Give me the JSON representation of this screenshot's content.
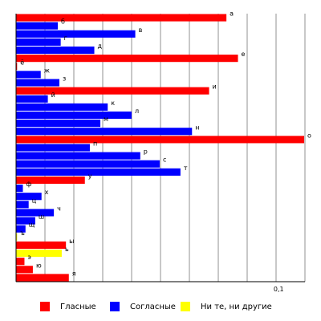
{
  "chart_data": {
    "type": "bar",
    "orientation": "horizontal",
    "xlim": [
      0,
      0.11
    ],
    "x_ticks": [
      {
        "value": 0.1,
        "label": "0,1"
      }
    ],
    "grid": true,
    "categories": [
      "а",
      "б",
      "в",
      "г",
      "д",
      "е",
      "ё",
      "ж",
      "з",
      "и",
      "й",
      "к",
      "л",
      "м",
      "н",
      "о",
      "п",
      "р",
      "с",
      "т",
      "у",
      "ф",
      "х",
      "ц",
      "ч",
      "ш",
      "щ",
      "ъ",
      "ы",
      "ь",
      "э",
      "ю",
      "я"
    ],
    "values": [
      0.0801,
      0.0159,
      0.0454,
      0.017,
      0.0298,
      0.0845,
      0.0004,
      0.0094,
      0.0165,
      0.0735,
      0.0121,
      0.0349,
      0.044,
      0.0321,
      0.067,
      0.1097,
      0.0281,
      0.0473,
      0.0547,
      0.0626,
      0.0262,
      0.0026,
      0.0097,
      0.0048,
      0.0144,
      0.0073,
      0.0036,
      0.0004,
      0.019,
      0.0174,
      0.0032,
      0.0064,
      0.0201
    ],
    "groups": [
      "vowel",
      "consonant",
      "consonant",
      "consonant",
      "consonant",
      "vowel",
      "vowel",
      "consonant",
      "consonant",
      "vowel",
      "consonant",
      "consonant",
      "consonant",
      "consonant",
      "consonant",
      "vowel",
      "consonant",
      "consonant",
      "consonant",
      "consonant",
      "vowel",
      "consonant",
      "consonant",
      "consonant",
      "consonant",
      "consonant",
      "consonant",
      "neither",
      "vowel",
      "neither",
      "vowel",
      "vowel",
      "vowel"
    ],
    "colors": {
      "vowel": "#ff0000",
      "consonant": "#0000ff",
      "neither": "#ffff00"
    },
    "legend": {
      "placement": "bottom",
      "entries": [
        {
          "key": "vowel",
          "label": "Гласные"
        },
        {
          "key": "consonant",
          "label": "Согласные"
        },
        {
          "key": "neither",
          "label": "Ни те, ни другие"
        }
      ]
    }
  }
}
